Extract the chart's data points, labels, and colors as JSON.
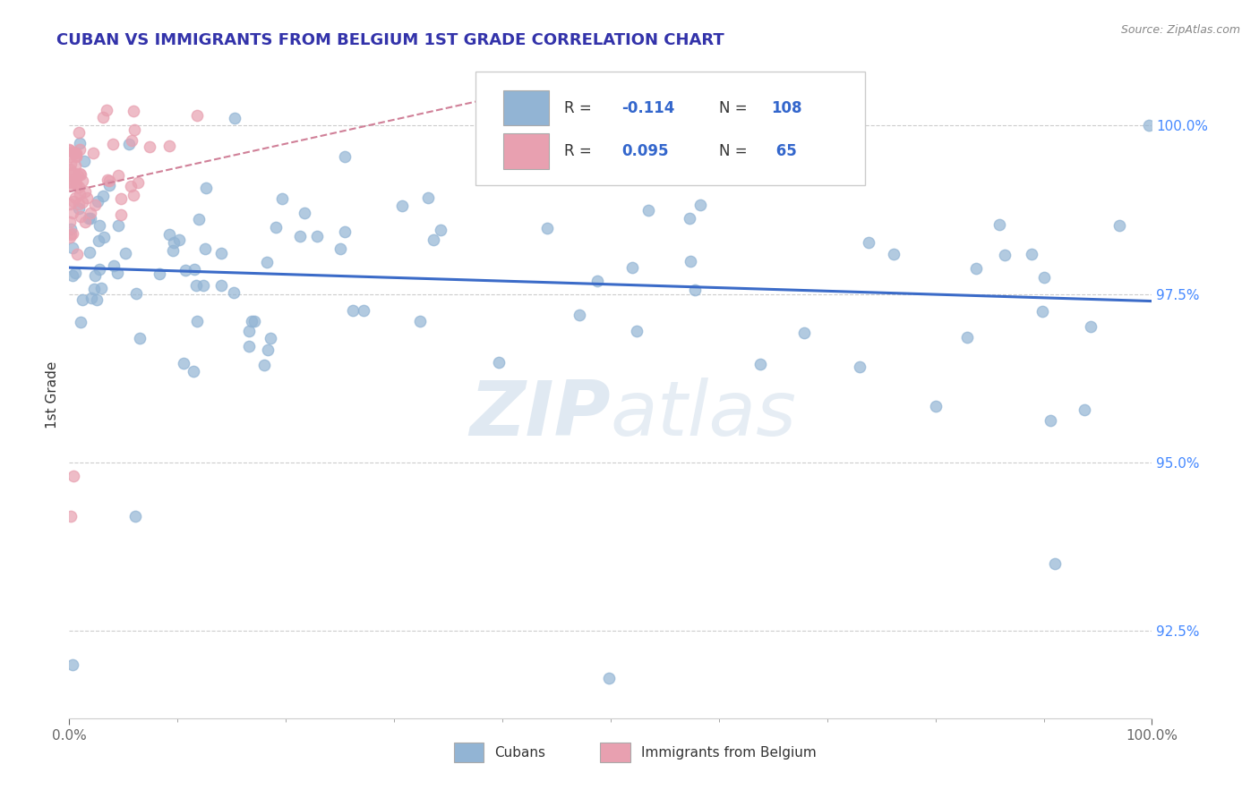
{
  "title": "CUBAN VS IMMIGRANTS FROM BELGIUM 1ST GRADE CORRELATION CHART",
  "source_text": "Source: ZipAtlas.com",
  "ylabel": "1st Grade",
  "xmin": 0.0,
  "xmax": 1.0,
  "ymin": 91.2,
  "ymax": 100.8,
  "ytick_values": [
    92.5,
    95.0,
    97.5,
    100.0
  ],
  "blue_color": "#92B4D4",
  "pink_color": "#E8A0B0",
  "blue_line_color": "#3B6BC8",
  "pink_line_color": "#D08098",
  "legend_blue_label": "Cubans",
  "legend_pink_label": "Immigrants from Belgium",
  "watermark_zip": "ZIP",
  "watermark_atlas": "atlas",
  "background_color": "#ffffff",
  "title_color": "#3333AA",
  "source_color": "#888888",
  "ylabel_color": "#333333",
  "tick_color_right": "#4488FF",
  "tick_color_x": "#888888",
  "grid_color": "#CCCCCC",
  "legend_R_color": "#3366CC",
  "legend_text_color": "#333333"
}
